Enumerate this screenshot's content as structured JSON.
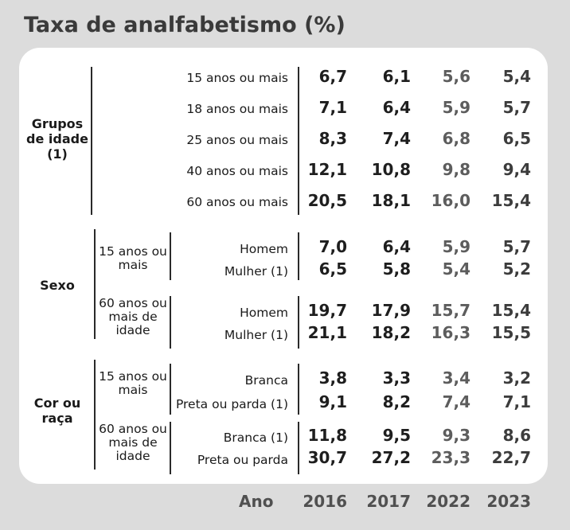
{
  "title": "Taxa de analfabetismo (%)",
  "chart_data": {
    "type": "table",
    "title": "Taxa de analfabetismo (%)",
    "axis_label": "Ano",
    "years": [
      "2016",
      "2017",
      "2022",
      "2023"
    ],
    "groups": [
      {
        "label": "Grupos de idade (1)",
        "subgroups": [
          {
            "label": "",
            "rows": [
              {
                "label": "15 anos ou mais",
                "values": [
                  "6,7",
                  "6,1",
                  "5,6",
                  "5,4"
                ]
              },
              {
                "label": "18 anos ou mais",
                "values": [
                  "7,1",
                  "6,4",
                  "5,9",
                  "5,7"
                ]
              },
              {
                "label": "25 anos ou mais",
                "values": [
                  "8,3",
                  "7,4",
                  "6,8",
                  "6,5"
                ]
              },
              {
                "label": "40 anos ou mais",
                "values": [
                  "12,1",
                  "10,8",
                  "9,8",
                  "9,4"
                ]
              },
              {
                "label": "60 anos ou mais",
                "values": [
                  "20,5",
                  "18,1",
                  "16,0",
                  "15,4"
                ]
              }
            ]
          }
        ]
      },
      {
        "label": "Sexo",
        "subgroups": [
          {
            "label": "15 anos ou mais",
            "rows": [
              {
                "label": "Homem",
                "values": [
                  "7,0",
                  "6,4",
                  "5,9",
                  "5,7"
                ]
              },
              {
                "label": "Mulher (1)",
                "values": [
                  "6,5",
                  "5,8",
                  "5,4",
                  "5,2"
                ]
              }
            ]
          },
          {
            "label": "60 anos ou mais de idade",
            "rows": [
              {
                "label": "Homem",
                "values": [
                  "19,7",
                  "17,9",
                  "15,7",
                  "15,4"
                ]
              },
              {
                "label": "Mulher (1)",
                "values": [
                  "21,1",
                  "18,2",
                  "16,3",
                  "15,5"
                ]
              }
            ]
          }
        ]
      },
      {
        "label": "Cor ou raça",
        "subgroups": [
          {
            "label": "15 anos ou mais",
            "rows": [
              {
                "label": "Branca",
                "values": [
                  "3,8",
                  "3,3",
                  "3,4",
                  "3,2"
                ]
              },
              {
                "label": "Preta ou parda (1)",
                "values": [
                  "9,1",
                  "8,2",
                  "7,4",
                  "7,1"
                ]
              }
            ]
          },
          {
            "label": "60 anos ou mais de idade",
            "rows": [
              {
                "label": "Branca (1)",
                "values": [
                  "11,8",
                  "9,5",
                  "9,3",
                  "8,6"
                ]
              },
              {
                "label": "Preta ou parda",
                "values": [
                  "30,7",
                  "27,2",
                  "23,3",
                  "22,7"
                ]
              }
            ]
          }
        ]
      }
    ]
  }
}
